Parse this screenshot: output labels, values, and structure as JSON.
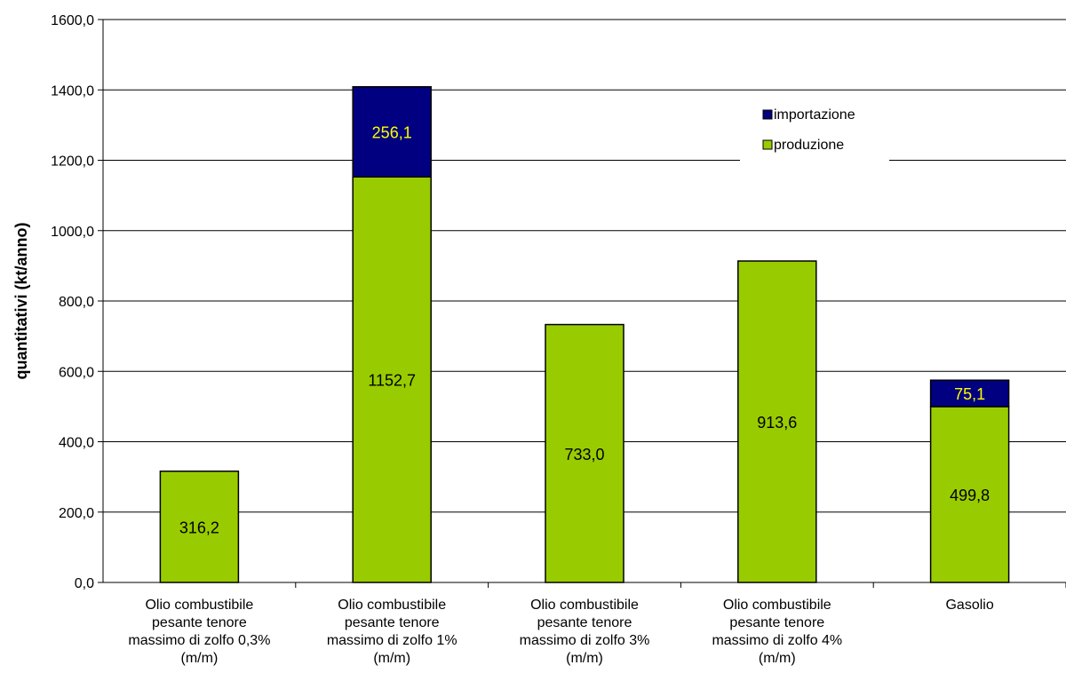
{
  "chart_data": {
    "type": "bar",
    "stacked": true,
    "categories": [
      [
        "Olio combustibile",
        "pesante tenore",
        "massimo di zolfo 0,3%",
        "(m/m)"
      ],
      [
        "Olio combustibile",
        "pesante tenore",
        "massimo di zolfo 1%",
        "(m/m)"
      ],
      [
        "Olio combustibile",
        "pesante tenore",
        "massimo di zolfo 3%",
        "(m/m)"
      ],
      [
        "Olio combustibile",
        "pesante tenore",
        "massimo di zolfo 4%",
        "(m/m)"
      ],
      [
        "Gasolio"
      ]
    ],
    "series": [
      {
        "name": "produzione",
        "color": "#99cc00",
        "label_color": "#000000",
        "values": [
          316.2,
          1152.7,
          733.0,
          913.6,
          499.8
        ],
        "labels": [
          "316,2",
          "1152,7",
          "733,0",
          "913,6",
          "499,8"
        ]
      },
      {
        "name": "importazione",
        "color": "#000080",
        "label_color": "#ffff00",
        "values": [
          0,
          256.1,
          0,
          0,
          75.1
        ],
        "labels": [
          "",
          "256,1",
          "",
          "",
          "75,1"
        ]
      }
    ],
    "ylabel": "quantitativi (kt/anno)",
    "xlabel": "",
    "title": "",
    "ylim": [
      0,
      1600
    ],
    "yticks": [
      0,
      200,
      400,
      600,
      800,
      1000,
      1200,
      1400,
      1600
    ],
    "ytick_labels": [
      "0,0",
      "200,0",
      "400,0",
      "600,0",
      "800,0",
      "1000,0",
      "1200,0",
      "1400,0",
      "1600,0"
    ],
    "grid": true,
    "legend_position": "top-right",
    "legend_order": [
      "importazione",
      "produzione"
    ]
  }
}
